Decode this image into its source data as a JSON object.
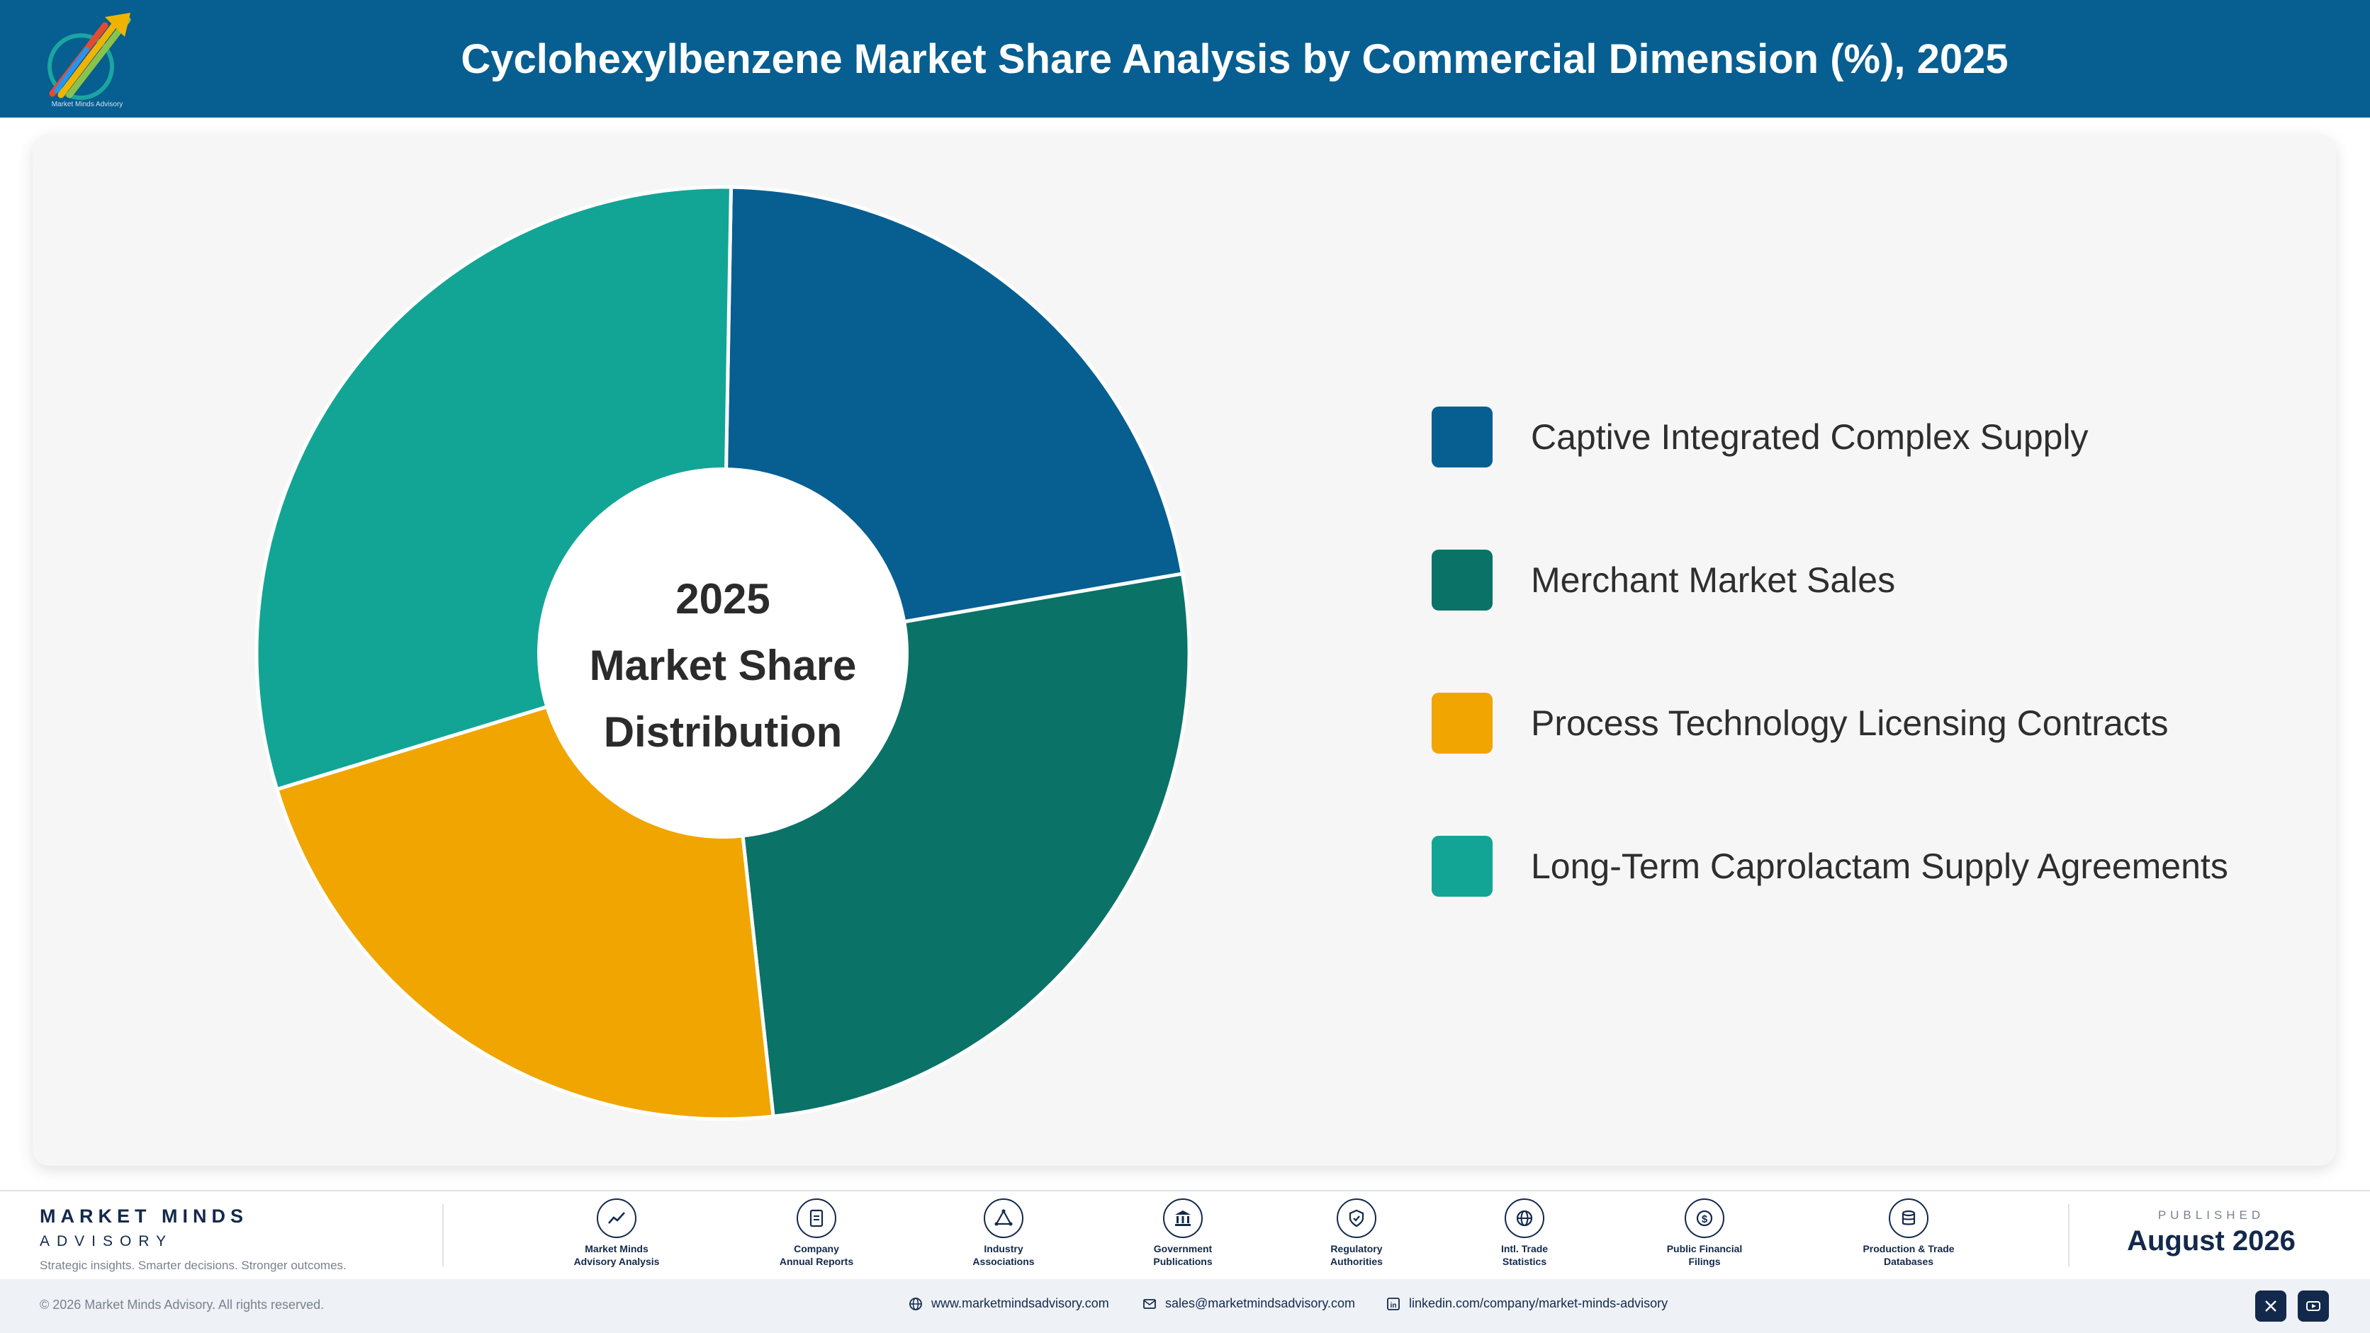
{
  "header": {
    "title": "Cyclohexylbenzene Market Share Analysis by Commercial Dimension (%), 2025",
    "logo_icon": "rising-arrows-logo-icon",
    "logo_text": "Market Minds Advisory"
  },
  "chart_data": {
    "type": "pie",
    "donut": true,
    "center_label": [
      "2025",
      "Market Share",
      "Distribution"
    ],
    "categories": [
      "Captive Integrated Complex Supply",
      "Merchant Market Sales",
      "Process Technology Licensing Contracts",
      "Long-Term Caprolactam Supply Agreements"
    ],
    "values": [
      22.0,
      26.0,
      22.0,
      30.0
    ],
    "colors": [
      "#075e91",
      "#0b7268",
      "#f0a500",
      "#12a595"
    ],
    "legend_position": "right"
  },
  "footer": {
    "brand_name": "MARKET MINDS",
    "brand_sub": "ADVISORY",
    "brand_tagline": "Strategic insights. Smarter decisions. Stronger outcomes.",
    "sources": [
      {
        "label": "Market Minds\nAdvisory Analysis",
        "icon": "trend-chart-icon"
      },
      {
        "label": "Company\nAnnual Reports",
        "icon": "document-icon"
      },
      {
        "label": "Industry\nAssociations",
        "icon": "network-icon"
      },
      {
        "label": "Government\nPublications",
        "icon": "government-building-icon"
      },
      {
        "label": "Regulatory\nAuthorities",
        "icon": "shield-check-icon"
      },
      {
        "label": "Intl. Trade\nStatistics",
        "icon": "globe-icon"
      },
      {
        "label": "Public Financial\nFilings",
        "icon": "dollar-coin-icon"
      },
      {
        "label": "Production & Trade\nDatabases",
        "icon": "database-icon"
      }
    ],
    "published_label": "PUBLISHED",
    "published_date": "August 2026",
    "copyright": "© 2026 Market Minds Advisory. All rights reserved.",
    "website": "www.marketmindsadvisory.com",
    "email": "sales@marketmindsadvisory.com",
    "linkedin": "linkedin.com/company/market-minds-advisory",
    "social": [
      {
        "icon": "x-twitter-icon"
      },
      {
        "icon": "youtube-icon"
      }
    ]
  }
}
